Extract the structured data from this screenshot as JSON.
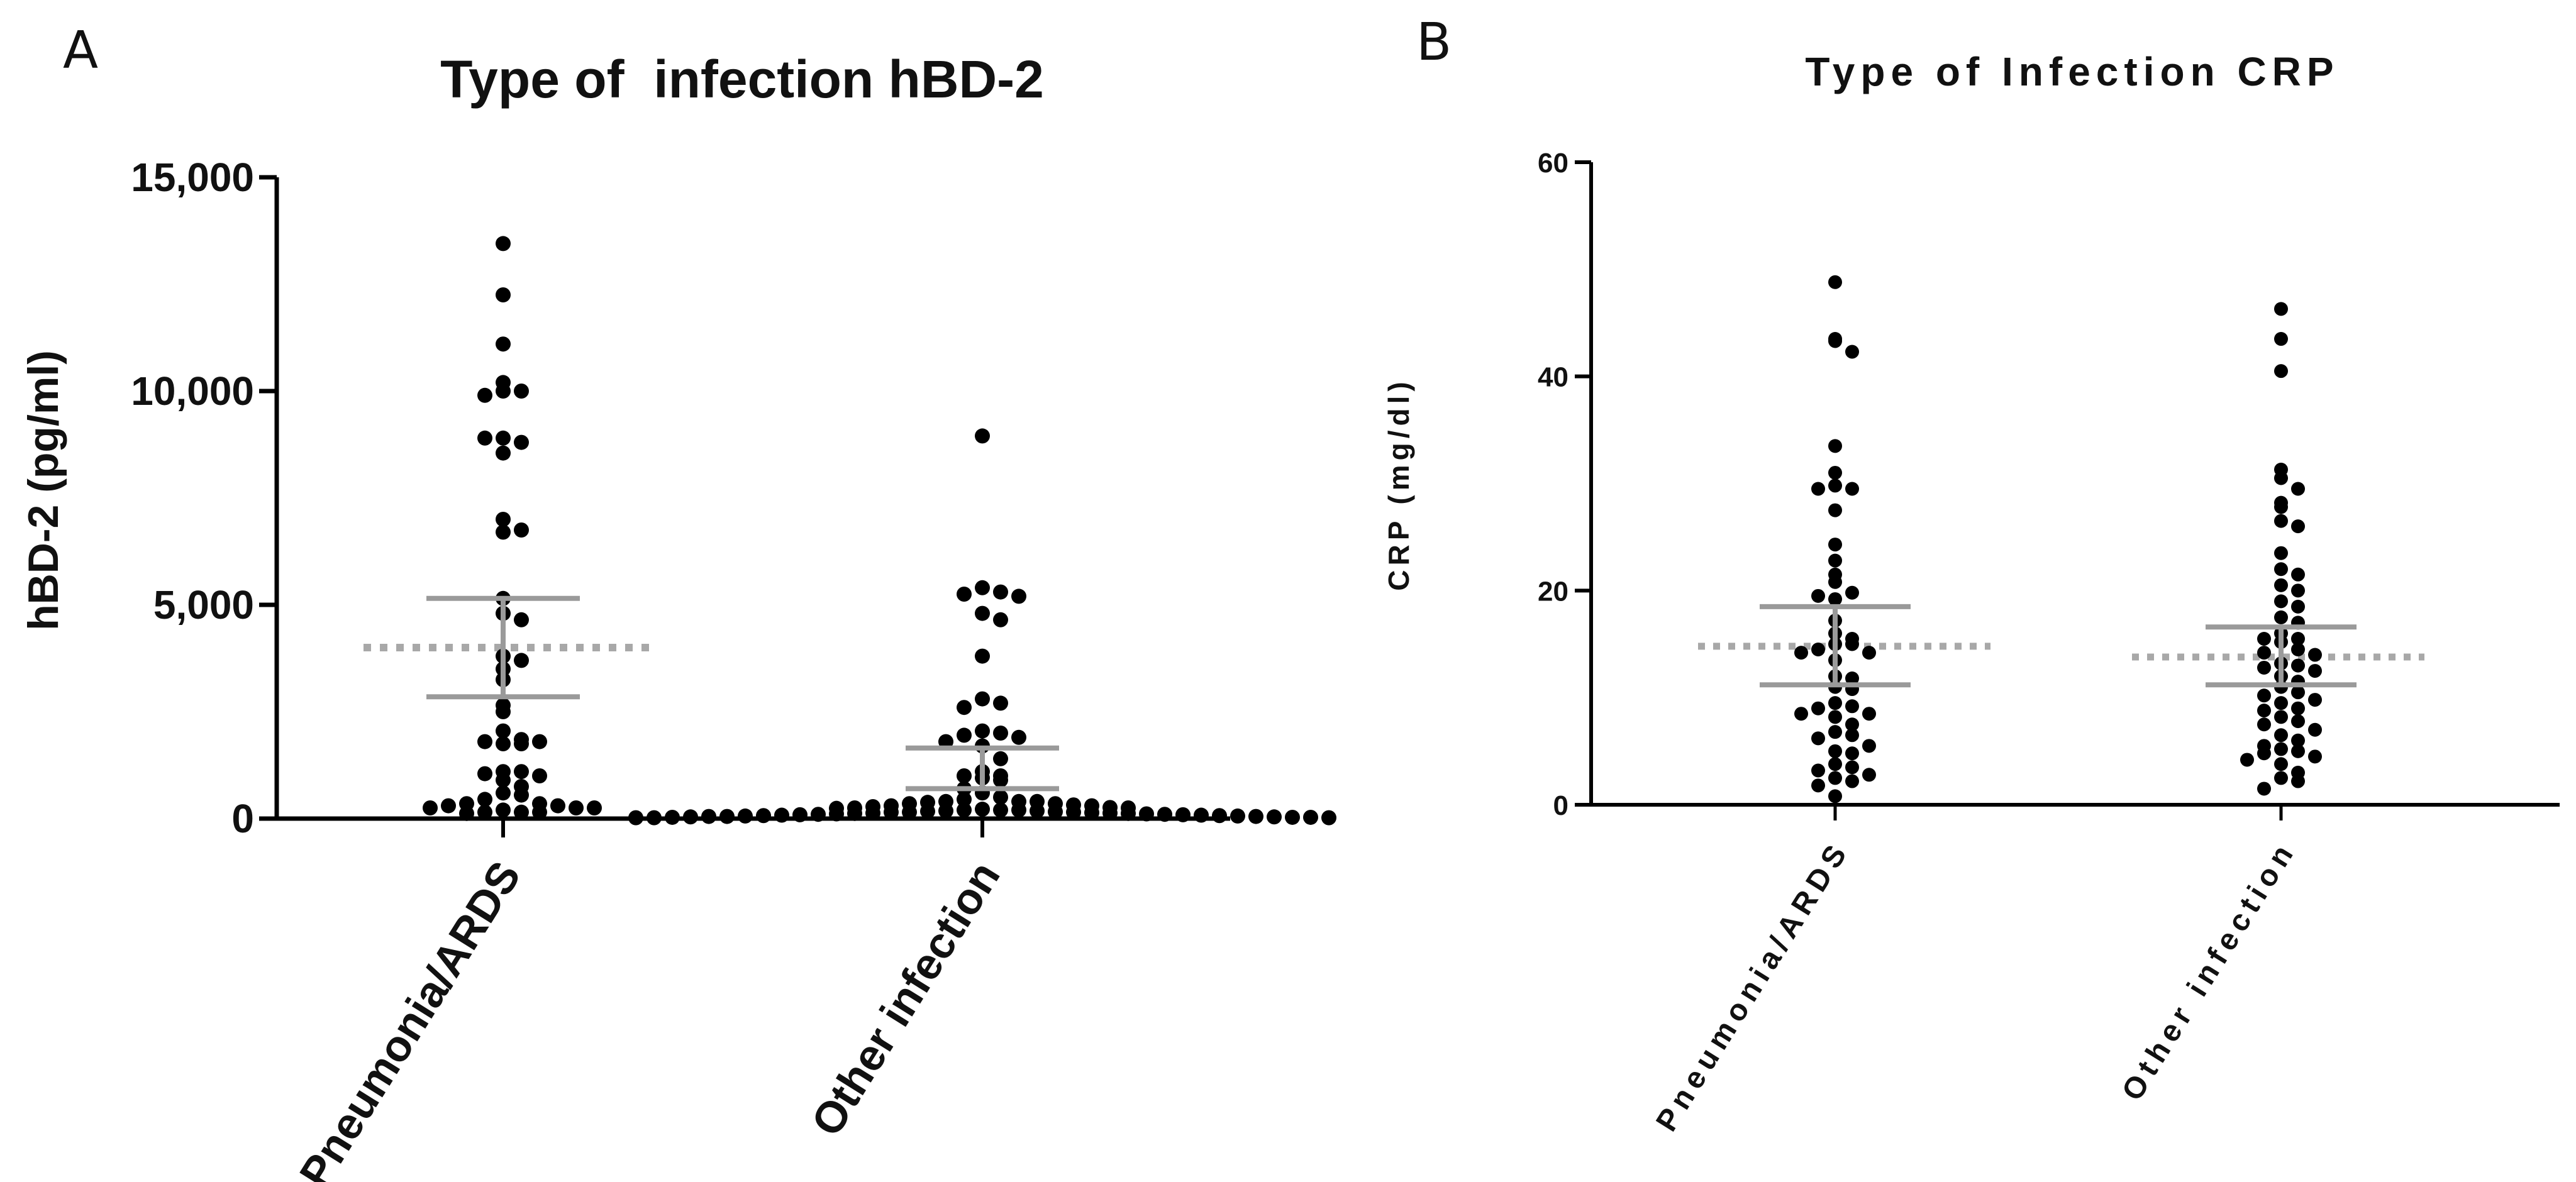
{
  "chart_data": [
    {
      "panel": "A",
      "type": "scatter",
      "title": "Type of  infection hBD-2",
      "xlabel": "",
      "ylabel": "hBD-2 (pg/ml)",
      "ylim": [
        0,
        15000
      ],
      "yticks": [
        0,
        5000,
        10000,
        15000
      ],
      "ytick_labels": [
        "0",
        "5,000",
        "10,000",
        "15,000"
      ],
      "categories": [
        "Pneumonia/ARDS",
        "Other infection"
      ],
      "reference_line": 4000,
      "series": [
        {
          "name": "Pneumonia/ARDS",
          "mean": 4000,
          "ci_low": 2850,
          "ci_high": 5150,
          "values": [
            13450,
            12250,
            11100,
            10200,
            10000,
            10000,
            9900,
            8900,
            8800,
            8900,
            8550,
            7000,
            6750,
            6700,
            5150,
            4800,
            4650,
            3800,
            3700,
            3500,
            3250,
            2650,
            2500,
            2050,
            1850,
            1800,
            1800,
            1750,
            1750,
            1100,
            1100,
            1050,
            1000,
            900,
            750,
            600,
            550,
            450,
            350,
            350,
            300,
            300,
            250,
            250,
            250,
            200,
            150,
            150,
            150,
            120
          ]
        },
        {
          "name": "Other infection",
          "mean": 1150,
          "ci_low": 700,
          "ci_high": 1650,
          "values": [
            8950,
            5400,
            5300,
            5250,
            5200,
            4800,
            4650,
            3800,
            2800,
            2700,
            2600,
            2050,
            2000,
            1950,
            1900,
            1800,
            1700,
            1400,
            1100,
            1000,
            1000,
            950,
            900,
            700,
            600,
            500,
            450,
            400,
            400,
            400,
            380,
            350,
            350,
            320,
            300,
            300,
            280,
            260,
            250,
            250,
            240,
            220,
            200,
            200,
            200,
            180,
            180,
            170,
            160,
            150,
            150,
            150,
            140,
            130,
            130,
            120,
            120,
            110,
            110,
            100,
            100,
            90,
            90,
            80,
            80,
            70,
            70,
            60,
            60,
            50,
            50,
            50,
            40,
            40,
            30,
            30,
            30,
            20,
            20,
            20
          ]
        }
      ]
    },
    {
      "panel": "B",
      "type": "scatter",
      "title": "Type of Infection CRP",
      "xlabel": "",
      "ylabel": "CRP (mg/dl)",
      "ylim": [
        0,
        60
      ],
      "yticks": [
        0,
        20,
        40,
        60
      ],
      "ytick_labels": [
        "0",
        "20",
        "40",
        "60"
      ],
      "categories": [
        "Pneumonia/ARDS",
        "Other infection"
      ],
      "series": [
        {
          "name": "Pneumonia/ARDS",
          "mean": 14.8,
          "ci_low": 11.2,
          "ci_high": 18.5,
          "values": [
            48.8,
            43.5,
            43.3,
            42.3,
            33.5,
            31.0,
            29.8,
            29.5,
            29.5,
            27.5,
            24.3,
            22.8,
            21.5,
            20.8,
            19.8,
            19.5,
            19.2,
            17.2,
            16.0,
            15.5,
            15.0,
            15.0,
            14.5,
            14.2,
            14.2,
            13.5,
            12.0,
            11.8,
            11.0,
            10.8,
            9.5,
            9.2,
            9.0,
            8.5,
            8.5,
            8.2,
            7.5,
            6.8,
            6.5,
            6.2,
            5.5,
            5.0,
            4.8,
            3.8,
            3.5,
            3.2,
            2.8,
            2.5,
            2.2,
            1.8,
            0.8
          ]
        },
        {
          "name": "Other infection",
          "mean": 13.8,
          "ci_low": 11.2,
          "ci_high": 16.6,
          "values": [
            46.3,
            43.5,
            40.5,
            31.3,
            30.5,
            29.5,
            28.2,
            27.8,
            26.5,
            26.0,
            23.5,
            22.0,
            21.5,
            20.5,
            20.0,
            19.0,
            18.5,
            17.5,
            17.0,
            16.0,
            15.5,
            15.5,
            15.2,
            14.5,
            14.2,
            14.0,
            13.2,
            13.0,
            12.8,
            12.5,
            12.0,
            11.5,
            11.0,
            10.5,
            10.2,
            9.8,
            9.5,
            9.0,
            8.8,
            8.2,
            7.8,
            7.5,
            7.0,
            6.5,
            6.0,
            5.5,
            5.2,
            5.0,
            4.8,
            4.5,
            4.2,
            3.8,
            3.0,
            2.5,
            2.2,
            1.5
          ]
        }
      ]
    }
  ]
}
